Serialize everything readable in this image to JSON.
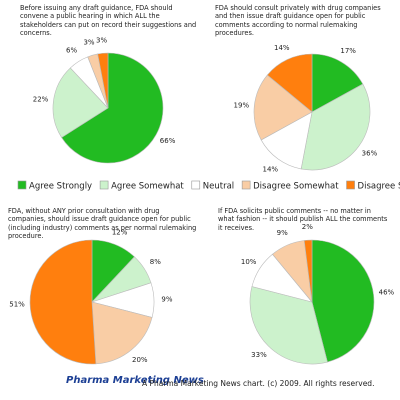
{
  "legend": {
    "labels": [
      "Agree Strongly",
      "Agree Somewhat",
      "Neutral",
      "Disagree Somewhat",
      "Disagree Strongly"
    ],
    "colors": [
      "#22bb22",
      "#ccf2cc",
      "#ffffff",
      "#f9cda5",
      "#ff7f0e"
    ]
  },
  "chart_data": [
    {
      "type": "pie",
      "title": "Before issuing any draft guidance, FDA should convene a public hearing in which ALL the stakeholders can put on record their suggestions and concerns.",
      "values": [
        66,
        22,
        6,
        3,
        3
      ],
      "value_labels": [
        "66%",
        "22%",
        "6%",
        "3%",
        "3%"
      ]
    },
    {
      "type": "pie",
      "title": "FDA should consult privately with drug companies and then issue draft guidance open for public comments according to normal rulemaking procedures.",
      "values": [
        17,
        36,
        14,
        19,
        14
      ],
      "value_labels": [
        "17%",
        "36%",
        "14%",
        "19%",
        "14%"
      ]
    },
    {
      "type": "pie",
      "title": "FDA, without ANY prior consultation with drug companies, should issue draft guidance open for public (including industry) comments as per normal rulemaking procedure.",
      "values": [
        12,
        8,
        9,
        20,
        51
      ],
      "value_labels": [
        "12%",
        "8%",
        "9%",
        "20%",
        "51%"
      ]
    },
    {
      "type": "pie",
      "title": "If FDA solicits public comments -- no matter in what fashion -- it should publish ALL the comments it receives.",
      "values": [
        46,
        33,
        10,
        9,
        2
      ],
      "value_labels": [
        "46%",
        "33%",
        "10%",
        "9%",
        "2%"
      ]
    }
  ],
  "footer": {
    "logo": "Pharma Marketing News",
    "text": "A Pharma Marketing News chart. (c) 2009. All rights reserved."
  }
}
